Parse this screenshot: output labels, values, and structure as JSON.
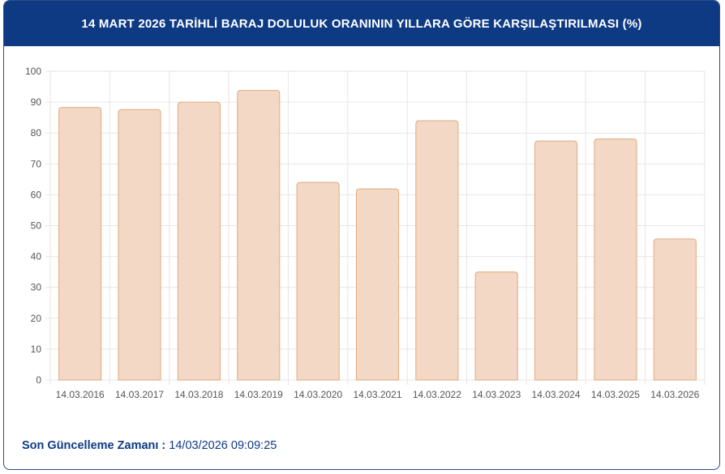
{
  "header": {
    "title": "14 MART 2026 TARİHLİ BARAJ DOLULUK ORANININ YILLARA GÖRE KARŞILAŞTIRILMASI (%)"
  },
  "footer": {
    "label": "Son Güncelleme Zamanı :",
    "value": " 14/03/2026 09:09:25"
  },
  "colors": {
    "header_bg": "#0e3a84",
    "bar_fill": "#f2d8c5",
    "bar_stroke": "#e3a97d",
    "grid": "#e6e6e6",
    "text": "#555555"
  },
  "chart_data": {
    "type": "bar",
    "title": "14 MART 2026 TARİHLİ BARAJ DOLULUK ORANININ YILLARA GÖRE KARŞILAŞTIRILMASI (%)",
    "categories": [
      "14.03.2016",
      "14.03.2017",
      "14.03.2018",
      "14.03.2019",
      "14.03.2020",
      "14.03.2021",
      "14.03.2022",
      "14.03.2023",
      "14.03.2024",
      "14.03.2025",
      "14.03.2026"
    ],
    "values": [
      88.3,
      87.6,
      90.0,
      93.8,
      64.0,
      61.9,
      84.0,
      35.0,
      77.4,
      78.1,
      45.7
    ],
    "ylim": [
      0,
      100
    ],
    "yticks": [
      0,
      10,
      20,
      30,
      40,
      50,
      60,
      70,
      80,
      90,
      100
    ],
    "grid": true,
    "xlabel": "",
    "ylabel": ""
  }
}
